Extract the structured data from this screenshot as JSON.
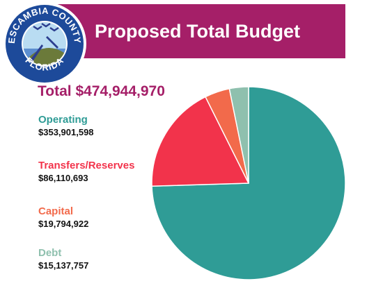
{
  "seal": {
    "top_text": "ESCAMBIA COUNTY",
    "bottom_text": "FLORIDA",
    "ring_color": "#1d4a9a"
  },
  "chart_data": {
    "type": "pie",
    "title": "Proposed Total Budget",
    "subtitle": "Total $474,944,970",
    "title_color": "#a51f68",
    "start_angle_deg": 0,
    "direction": "clockwise",
    "slices": [
      {
        "label": "Operating",
        "value_label": "$353,901,598",
        "value": 353901598,
        "color": "#2f9c96"
      },
      {
        "label": "Transfers/Reserves",
        "value_label": "$86,110,693",
        "value": 86110693,
        "color": "#f2334b"
      },
      {
        "label": "Capital",
        "value_label": "$19,794,922",
        "value": 19794922,
        "color": "#f26a4b"
      },
      {
        "label": "Debt",
        "value_label": "$15,137,757",
        "value": 15137757,
        "color": "#8fc0ae"
      }
    ]
  }
}
